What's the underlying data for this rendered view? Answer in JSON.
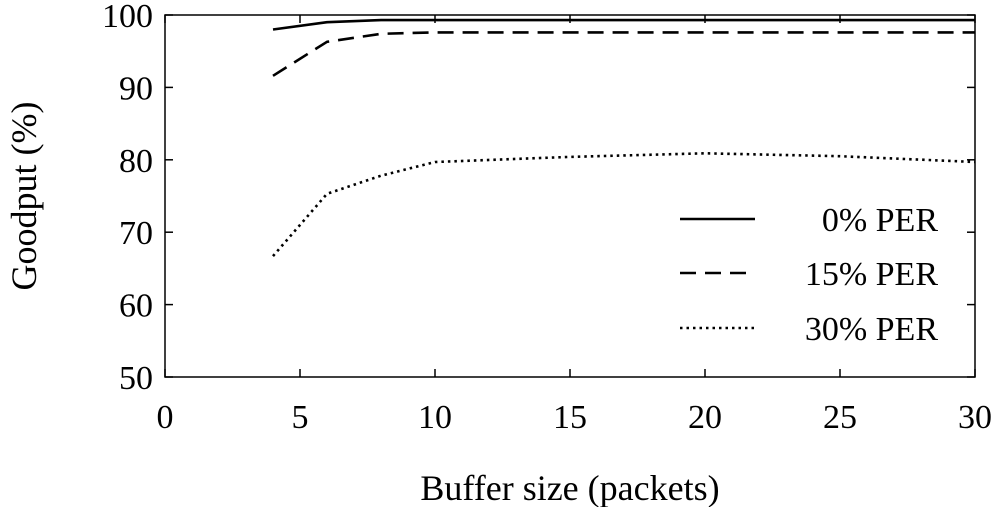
{
  "chart_data": {
    "type": "line",
    "title": "",
    "xlabel": "Buffer size (packets)",
    "ylabel": "Goodput (%)",
    "xlim": [
      0,
      30
    ],
    "ylim": [
      50,
      100
    ],
    "xticks": [
      0,
      5,
      10,
      15,
      20,
      25,
      30
    ],
    "yticks": [
      50,
      60,
      70,
      80,
      90,
      100
    ],
    "grid": false,
    "legend_position": "lower-right",
    "series": [
      {
        "name": "0% PER",
        "style": "solid",
        "x": [
          4,
          6,
          8,
          10,
          15,
          20,
          25,
          30
        ],
        "y": [
          98.0,
          99.0,
          99.3,
          99.3,
          99.3,
          99.3,
          99.3,
          99.3
        ]
      },
      {
        "name": "15% PER",
        "style": "dashed",
        "x": [
          4,
          6,
          8,
          10,
          15,
          20,
          25,
          30
        ],
        "y": [
          91.6,
          96.3,
          97.4,
          97.6,
          97.6,
          97.6,
          97.6,
          97.6
        ]
      },
      {
        "name": "30% PER",
        "style": "dotted",
        "x": [
          4,
          6,
          8,
          10,
          15,
          20,
          25,
          30
        ],
        "y": [
          66.7,
          75.3,
          77.8,
          79.7,
          80.4,
          80.9,
          80.5,
          79.7
        ]
      }
    ]
  }
}
